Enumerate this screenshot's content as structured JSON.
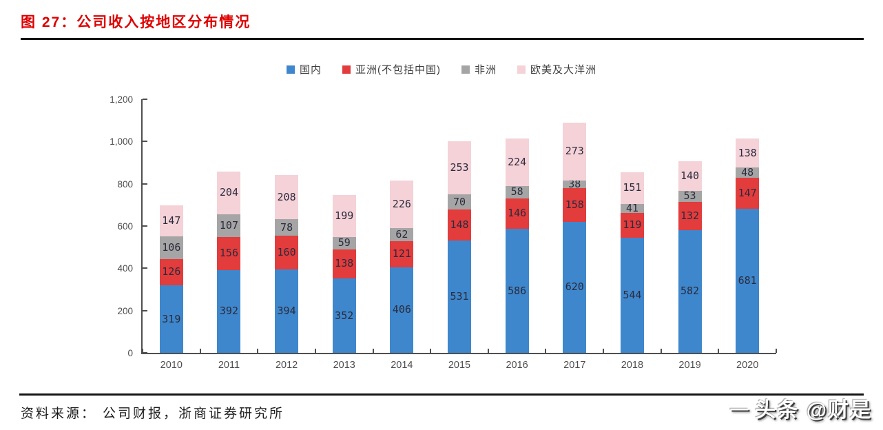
{
  "figure": {
    "title": "图 27：公司收入按地区分布情况"
  },
  "chart_data": {
    "type": "bar",
    "stacked": true,
    "title": "公司收入按地区分布情况",
    "categories": [
      "2010",
      "2011",
      "2012",
      "2013",
      "2014",
      "2015",
      "2016",
      "2017",
      "2018",
      "2019",
      "2020"
    ],
    "series": [
      {
        "name": "国内",
        "color": "#3E87CC",
        "values": [
          319,
          392,
          394,
          352,
          406,
          531,
          586,
          620,
          544,
          582,
          681
        ]
      },
      {
        "name": "亚洲(不包括中国)",
        "color": "#E23C3C",
        "values": [
          126,
          156,
          160,
          138,
          121,
          148,
          146,
          158,
          119,
          132,
          147
        ]
      },
      {
        "name": "非洲",
        "color": "#A5A5A5",
        "values": [
          106,
          107,
          78,
          59,
          62,
          70,
          58,
          38,
          41,
          53,
          48
        ]
      },
      {
        "name": "欧美及大洋洲",
        "color": "#F4D2D8",
        "values": [
          147,
          204,
          208,
          199,
          226,
          253,
          224,
          273,
          151,
          140,
          138
        ]
      }
    ],
    "xlabel": "",
    "ylabel": "",
    "ylim": [
      0,
      1200
    ],
    "ytick_interval": 200,
    "yticks": [
      "0",
      "200",
      "400",
      "600",
      "800",
      "1,000",
      "1,200"
    ],
    "grid": false,
    "legend_position": "top"
  },
  "footer": {
    "source": "资料来源：  公司财报，浙商证券研究所"
  },
  "watermark": {
    "dash": "—",
    "text": "头条 @财是"
  },
  "theme": {
    "title_color": "#DF0000",
    "axis_color": "#4F4F4F",
    "segment_label_color": "#2B2B3D",
    "tick_text_color": "#4D4D4D"
  }
}
